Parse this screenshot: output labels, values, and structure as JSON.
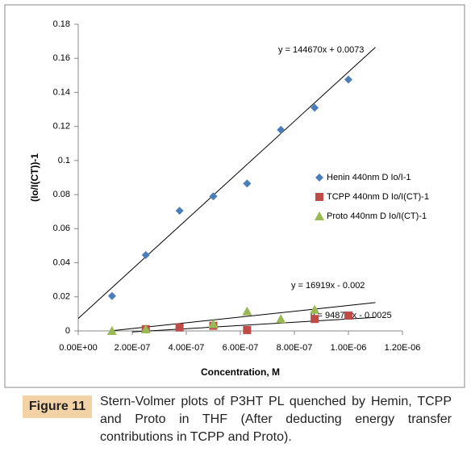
{
  "chart_data": {
    "type": "scatter",
    "ylabel": "(Io/I(CT))-1",
    "xlabel": "Concentration, M",
    "x": [
      1.25e-07,
      2.5e-07,
      3.75e-07,
      5e-07,
      6.25e-07,
      7.5e-07,
      8.75e-07,
      1e-06
    ],
    "series": [
      {
        "name": "Henin 440nm D Io/I-1",
        "color": "#4a7ebb",
        "marker": "diamond",
        "values": [
          0.0205,
          0.0445,
          0.0705,
          0.079,
          0.0865,
          0.118,
          0.131,
          0.1475
        ]
      },
      {
        "name": "TCPP 440nm D Io/I(CT)-1",
        "color": "#be4b48",
        "marker": "square",
        "values": [
          null,
          0.001,
          0.002,
          0.003,
          0.0005,
          null,
          0.007,
          0.009
        ]
      },
      {
        "name": "Proto 440nm D Io/I(CT)-1",
        "color": "#98b954",
        "marker": "triangle",
        "values": [
          0,
          0.001,
          null,
          0.004,
          0.0115,
          0.007,
          0.0125,
          null
        ]
      }
    ],
    "trendlines": [
      {
        "label": "y = 144670x + 0.0073",
        "slope": 144670,
        "intercept": 0.0073,
        "xlim": [
          0,
          1.1e-06
        ]
      },
      {
        "label": "y = 16919x - 0.002",
        "slope": 16919,
        "intercept": -0.002,
        "xlim": [
          1.25e-07,
          1.1e-06
        ]
      },
      {
        "label": "y = 9487.1x - 0.0025",
        "slope": 9487.1,
        "intercept": -0.0025,
        "xlim": [
          2e-07,
          1.1e-06
        ]
      }
    ],
    "xlim": [
      0,
      1.2e-06
    ],
    "ylim": [
      0,
      0.18
    ],
    "xticks": [
      {
        "value": 0,
        "label": "0.00E+00"
      },
      {
        "value": 2e-07,
        "label": "2.00E-07"
      },
      {
        "value": 4e-07,
        "label": "4.00E-07"
      },
      {
        "value": 6e-07,
        "label": "6.00E-07"
      },
      {
        "value": 8e-07,
        "label": "8.00E-07"
      },
      {
        "value": 1e-06,
        "label": "1.00E-06"
      },
      {
        "value": 1.2e-06,
        "label": "1.20E-06"
      }
    ],
    "yticks": [
      0,
      0.02,
      0.04,
      0.06,
      0.08,
      0.1,
      0.12,
      0.14,
      0.16,
      0.18
    ],
    "grid": false,
    "legend": "right"
  },
  "caption": {
    "label": "Figure 11",
    "text": "Stern-Volmer plots of P3HT PL quenched by Hemin, TCPP and Proto in THF (After deducting energy transfer contributions in TCPP and Proto)."
  }
}
